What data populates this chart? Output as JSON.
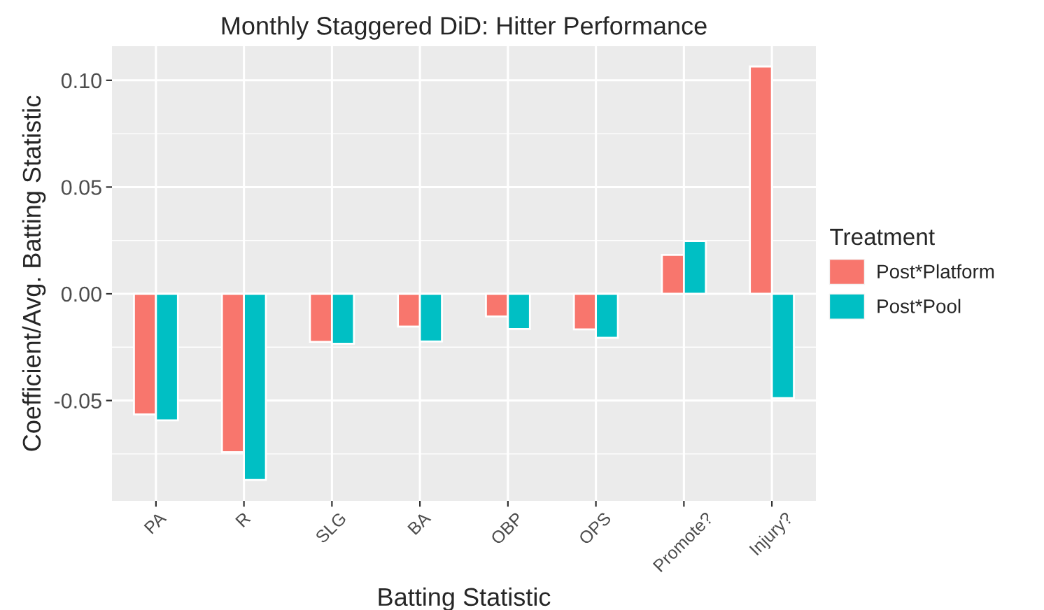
{
  "chart_data": {
    "type": "bar",
    "title": "Monthly Staggered DiD: Hitter Performance",
    "xlabel": "Batting Statistic",
    "ylabel": "Coefficient/Avg. Batting Statistic",
    "legend_title": "Treatment",
    "categories": [
      "PA",
      "R",
      "SLG",
      "BA",
      "OBP",
      "OPS",
      "Promote?",
      "Injury?"
    ],
    "series": [
      {
        "name": "Post*Platform",
        "color": "#f8766d",
        "values": [
          -0.0565,
          -0.0742,
          -0.0225,
          -0.0154,
          -0.0106,
          -0.0167,
          0.0182,
          0.1065
        ]
      },
      {
        "name": "Post*Pool",
        "color": "#00bfc4",
        "values": [
          -0.0593,
          -0.0872,
          -0.0234,
          -0.0223,
          -0.0165,
          -0.0206,
          0.0247,
          -0.0489
        ]
      }
    ],
    "ylim": [
      -0.097,
      0.116
    ],
    "yticks": [
      {
        "value": -0.05,
        "label": "-0.05"
      },
      {
        "value": 0.0,
        "label": "0.00"
      },
      {
        "value": 0.05,
        "label": "0.05"
      },
      {
        "value": 0.1,
        "label": "0.10"
      }
    ],
    "grid": true,
    "legend": "right"
  }
}
